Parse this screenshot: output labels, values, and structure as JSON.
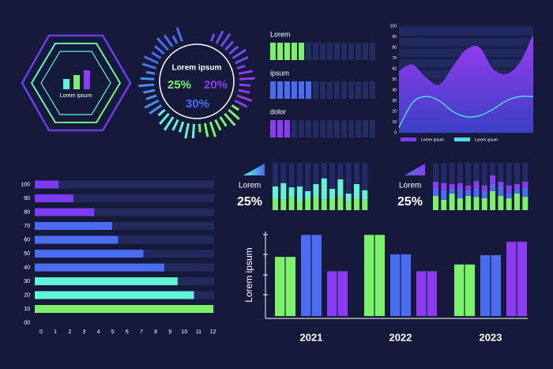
{
  "chart_data": [
    {
      "type": "bar",
      "title": "Lorem ipsum",
      "values": [
        13,
        18,
        24
      ],
      "colors": [
        "#5ef5d8",
        "#7cf26a",
        "#8b3cf0"
      ]
    },
    {
      "type": "area",
      "ylim": [
        0,
        100
      ],
      "yticks": [
        0,
        10,
        20,
        30,
        40,
        50,
        60,
        70,
        80,
        90,
        100
      ],
      "series": [
        {
          "name": "Lorem ipsum",
          "color": "#7b3cf0",
          "values": [
            58,
            64,
            52,
            45,
            62,
            78,
            80,
            60,
            55,
            66,
            92
          ]
        },
        {
          "name": "Lorem ipsum",
          "color": "#4fd8e6",
          "values": [
            5,
            28,
            34,
            30,
            20,
            15,
            16,
            22,
            30,
            34,
            34
          ]
        }
      ]
    },
    {
      "type": "hbar",
      "categories": [
        "10",
        "20",
        "30",
        "40",
        "50",
        "60",
        "70",
        "80",
        "90",
        "100"
      ],
      "values": [
        12,
        10.7,
        9.6,
        8.7,
        7.3,
        5.6,
        5.2,
        4.0,
        2.6,
        1.6
      ],
      "colors": [
        "#7cf26a",
        "#5ef5d8",
        "#5ef5d8",
        "#4a6cf0",
        "#4a6cf0",
        "#4a6cf0",
        "#4a6cf0",
        "#7a3cf0",
        "#7a3cf0",
        "#7a3cf0"
      ],
      "origin_label": "00",
      "xlim": [
        0,
        12
      ],
      "xticks": [
        0,
        1,
        2,
        3,
        4,
        5,
        6,
        7,
        8,
        9,
        10,
        11,
        12
      ]
    },
    {
      "type": "stacked-bar",
      "title": "Lorem",
      "headline": "25%",
      "ylim": [
        0,
        100
      ],
      "series": [
        {
          "color": "#7cf26a",
          "values": [
            25,
            22,
            28,
            20,
            25,
            30,
            22,
            25,
            30,
            20,
            25,
            22
          ]
        },
        {
          "color": "#5ef5d8",
          "values": [
            25,
            35,
            20,
            30,
            15,
            25,
            45,
            20,
            35,
            15,
            30,
            20
          ]
        }
      ]
    },
    {
      "type": "stacked-bar",
      "title": "Lorem",
      "headline": "25%",
      "ylim": [
        0,
        100
      ],
      "series": [
        {
          "color": "#7cf26a",
          "values": [
            30,
            22,
            35,
            25,
            30,
            28,
            25,
            40,
            30,
            25,
            35,
            28
          ]
        },
        {
          "color": "#4a6cf0",
          "values": [
            15,
            20,
            10,
            20,
            12,
            18,
            15,
            15,
            20,
            12,
            10,
            20
          ]
        },
        {
          "color": "#8b3cf0",
          "values": [
            15,
            15,
            10,
            12,
            10,
            15,
            12,
            18,
            10,
            15,
            10,
            12
          ]
        }
      ]
    },
    {
      "type": "grouped-bar",
      "categories": [
        "2021",
        "2022",
        "2023"
      ],
      "ylabel": "Lorem ipsum",
      "ylim": [
        0,
        100
      ],
      "series": [
        {
          "color": "#7cf26a",
          "values": [
            70,
            96,
            61
          ]
        },
        {
          "color": "#4a6cf0",
          "values": [
            96,
            73,
            72
          ]
        },
        {
          "color": "#8b3cf0",
          "values": [
            53,
            53,
            88
          ]
        }
      ]
    }
  ],
  "gauge": {
    "title": "Lorem ipsum",
    "labels": [
      "25%",
      "20%",
      "30%"
    ]
  },
  "progress": {
    "segments": 15,
    "items": [
      {
        "label": "Lorem",
        "value": 5,
        "color": "#7cf26a"
      },
      {
        "label": "ipsum",
        "value": 6,
        "color": "#4a6cf0"
      },
      {
        "label": "dolor",
        "value": 3,
        "color": "#8b3cf0"
      }
    ]
  }
}
